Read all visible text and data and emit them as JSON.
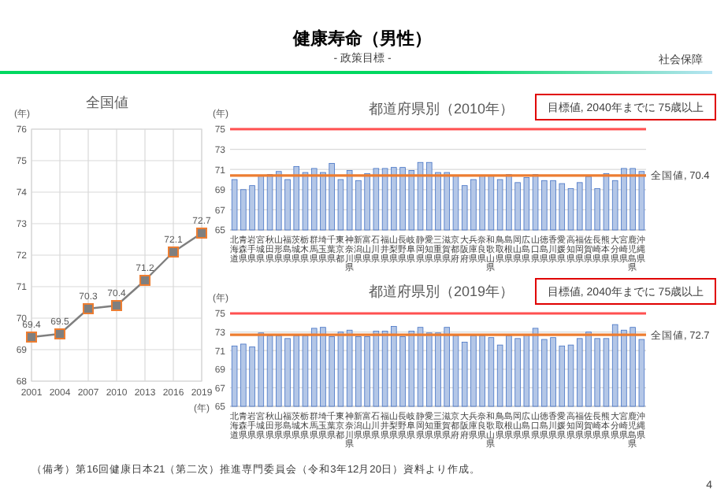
{
  "chart_data": [
    {
      "type": "line",
      "title": "全国値",
      "ylabel": "(年)",
      "xlabel": "(年)",
      "x": [
        2001,
        2004,
        2007,
        2010,
        2013,
        2016,
        2019
      ],
      "xlim": [
        2001,
        2019
      ],
      "xticks": [
        2001,
        2004,
        2007,
        2010,
        2013,
        2016,
        2019
      ],
      "ylim": [
        68,
        76
      ],
      "yticks": [
        68,
        69,
        70,
        71,
        72,
        73,
        74,
        75,
        76
      ],
      "grid": true,
      "marker": "square",
      "data_labels": true,
      "series": [
        {
          "color": "#7f7f7f",
          "values": [
            69.4,
            69.5,
            70.3,
            70.4,
            71.2,
            72.1,
            72.7
          ]
        }
      ],
      "annotations": [
        "健康寿命（男性）",
        "- 政策目標 -",
        "社会保障",
        "（備考）第16回健康日本21（第二次）推進専門委員会（令和3年12月20日）資料より作成。",
        "4"
      ]
    },
    {
      "type": "bar",
      "title": "都道府県別（2010年）",
      "ylabel": "(年)",
      "ylim": [
        65,
        75
      ],
      "yticks": [
        65,
        67,
        69,
        71,
        73,
        75
      ],
      "grid": "y",
      "categories": [
        "北海道",
        "青森県",
        "岩手県",
        "宮城県",
        "秋田県",
        "山形県",
        "福島県",
        "茨城県",
        "栃木県",
        "群馬県",
        "埼玉県",
        "千葉県",
        "東京都",
        "神奈川県",
        "新潟県",
        "富山県",
        "石川県",
        "福井県",
        "山梨県",
        "長野県",
        "岐阜県",
        "静岡県",
        "愛知県",
        "三重県",
        "滋賀県",
        "京都府",
        "大阪府",
        "兵庫県",
        "奈良県",
        "和歌山県",
        "鳥取県",
        "島根県",
        "岡山県",
        "広島県",
        "山口県",
        "徳島県",
        "香川県",
        "愛媛県",
        "高知県",
        "福岡県",
        "佐賀県",
        "長崎県",
        "熊本県",
        "大分県",
        "宮崎県",
        "鹿児島県",
        "沖縄県"
      ],
      "series": [
        {
          "color": "#b4c7e7",
          "values": [
            70.0,
            69.0,
            69.4,
            70.4,
            70.5,
            70.8,
            70.0,
            71.3,
            70.7,
            71.1,
            70.7,
            71.6,
            70.0,
            70.9,
            69.9,
            70.6,
            71.1,
            71.1,
            71.2,
            71.2,
            70.9,
            71.7,
            71.7,
            70.7,
            70.7,
            70.4,
            69.4,
            70.0,
            70.4,
            70.4,
            70.0,
            70.5,
            69.7,
            70.2,
            70.5,
            69.9,
            69.9,
            69.6,
            69.1,
            69.7,
            70.3,
            69.1,
            70.6,
            69.9,
            71.1,
            71.1,
            70.8
          ]
        }
      ],
      "ref_lines": [
        {
          "axis": "y",
          "value": 75,
          "label": "目標値, 2040年までに 75歳以上",
          "color": "#ff5050"
        },
        {
          "axis": "y",
          "value": 70.4,
          "label": "全国値, 70.4",
          "color": "#ed7d31"
        }
      ]
    },
    {
      "type": "bar",
      "title": "都道府県別（2019年）",
      "ylabel": "(年)",
      "ylim": [
        65,
        75
      ],
      "yticks": [
        65,
        67,
        69,
        71,
        73,
        75
      ],
      "grid": "y",
      "categories": [
        "北海道",
        "青森県",
        "岩手県",
        "宮城県",
        "秋田県",
        "山形県",
        "福島県",
        "茨城県",
        "栃木県",
        "群馬県",
        "埼玉県",
        "千葉県",
        "東京都",
        "神奈川県",
        "新潟県",
        "富山県",
        "石川県",
        "福井県",
        "山梨県",
        "長野県",
        "岐阜県",
        "静岡県",
        "愛知県",
        "三重県",
        "滋賀県",
        "京都府",
        "大阪府",
        "兵庫県",
        "奈良県",
        "和歌山県",
        "鳥取県",
        "島根県",
        "岡山県",
        "広島県",
        "山口県",
        "徳島県",
        "香川県",
        "愛媛県",
        "高知県",
        "福岡県",
        "佐賀県",
        "長崎県",
        "熊本県",
        "大分県",
        "宮崎県",
        "鹿児島県",
        "沖縄県"
      ],
      "series": [
        {
          "color": "#b4c7e7",
          "values": [
            71.5,
            71.7,
            71.4,
            72.9,
            72.6,
            72.6,
            72.3,
            72.6,
            72.6,
            73.4,
            73.5,
            72.5,
            73.0,
            73.2,
            72.5,
            72.5,
            73.1,
            73.1,
            73.6,
            72.5,
            73.1,
            73.5,
            72.9,
            72.9,
            73.5,
            72.6,
            71.9,
            72.6,
            72.6,
            72.4,
            71.6,
            72.6,
            72.3,
            72.7,
            73.4,
            72.2,
            72.4,
            71.5,
            71.6,
            72.3,
            73.0,
            72.3,
            72.3,
            73.8,
            73.2,
            73.5,
            72.2
          ]
        }
      ],
      "ref_lines": [
        {
          "axis": "y",
          "value": 75,
          "label": "目標値, 2040年までに 75歳以上",
          "color": "#ff5050"
        },
        {
          "axis": "y",
          "value": 72.7,
          "label": "全国値, 72.7",
          "color": "#ed7d31"
        }
      ]
    }
  ]
}
